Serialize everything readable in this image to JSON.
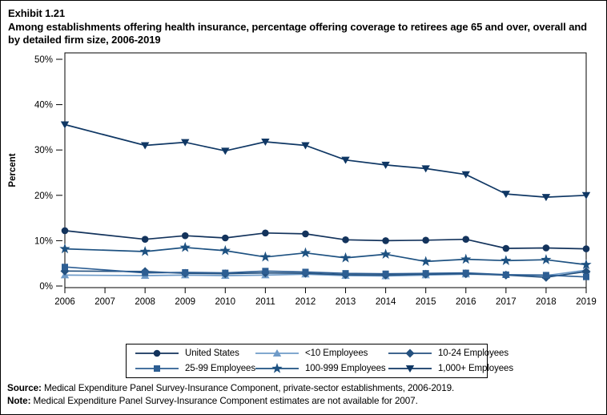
{
  "header": {
    "exhibit": "Exhibit 1.21",
    "title": "Among establishments offering health insurance, percentage offering coverage to retirees age 65 and over, overall and by detailed firm size, 2006-2019"
  },
  "chart_data": {
    "type": "line",
    "ylabel": "Percent",
    "xlabel": "",
    "ylim": [
      0,
      50
    ],
    "yticks": [
      0,
      10,
      20,
      30,
      40,
      50
    ],
    "ytick_suffix": "%",
    "x_axis_years": [
      2006,
      2007,
      2008,
      2009,
      2010,
      2011,
      2012,
      2013,
      2014,
      2015,
      2016,
      2017,
      2018,
      2019
    ],
    "x": [
      2006,
      2008,
      2009,
      2010,
      2011,
      2012,
      2013,
      2014,
      2015,
      2016,
      2017,
      2018,
      2019
    ],
    "missing_year": 2007,
    "grid": false,
    "legend_position": "bottom",
    "series": [
      {
        "name": "United States",
        "marker": "circle",
        "color": "#13335c",
        "values": [
          12.2,
          10.3,
          11.1,
          10.6,
          11.7,
          11.5,
          10.2,
          10.0,
          10.1,
          10.3,
          8.3,
          8.4,
          8.2
        ]
      },
      {
        "name": "<10 Employees",
        "marker": "triangle-up",
        "color": "#6f9bc8",
        "values": [
          2.4,
          2.3,
          2.4,
          2.3,
          2.4,
          2.6,
          2.3,
          2.2,
          2.4,
          2.6,
          2.5,
          2.3,
          3.5
        ]
      },
      {
        "name": "10-24 Employees",
        "marker": "diamond",
        "color": "#24517f",
        "values": [
          3.3,
          3.2,
          2.8,
          2.7,
          2.9,
          2.8,
          2.5,
          2.4,
          2.6,
          2.7,
          2.4,
          1.9,
          3.2
        ]
      },
      {
        "name": "25-99 Employees",
        "marker": "square",
        "color": "#2d5e93",
        "values": [
          4.2,
          2.9,
          3.0,
          2.9,
          3.3,
          3.1,
          2.8,
          2.7,
          2.8,
          2.9,
          2.5,
          2.4,
          2.0
        ]
      },
      {
        "name": "100-999 Employees",
        "marker": "star",
        "color": "#1d5181",
        "values": [
          8.2,
          7.6,
          8.5,
          7.8,
          6.4,
          7.3,
          6.2,
          7.0,
          5.4,
          5.9,
          5.6,
          5.8,
          4.7
        ]
      },
      {
        "name": "1,000+ Employees",
        "marker": "triangle-down",
        "color": "#0f3764",
        "values": [
          35.6,
          31.0,
          31.7,
          29.8,
          31.8,
          31.0,
          27.8,
          26.7,
          25.9,
          24.6,
          20.3,
          19.6,
          20.0
        ]
      }
    ]
  },
  "footer": {
    "source_label": "Source:",
    "source_text": " Medical Expenditure Panel Survey-Insurance Component, private-sector establishments, 2006-2019.",
    "note_label": "Note:",
    "note_text": " Medical Expenditure Panel Survey-Insurance Component estimates are not available for 2007."
  }
}
